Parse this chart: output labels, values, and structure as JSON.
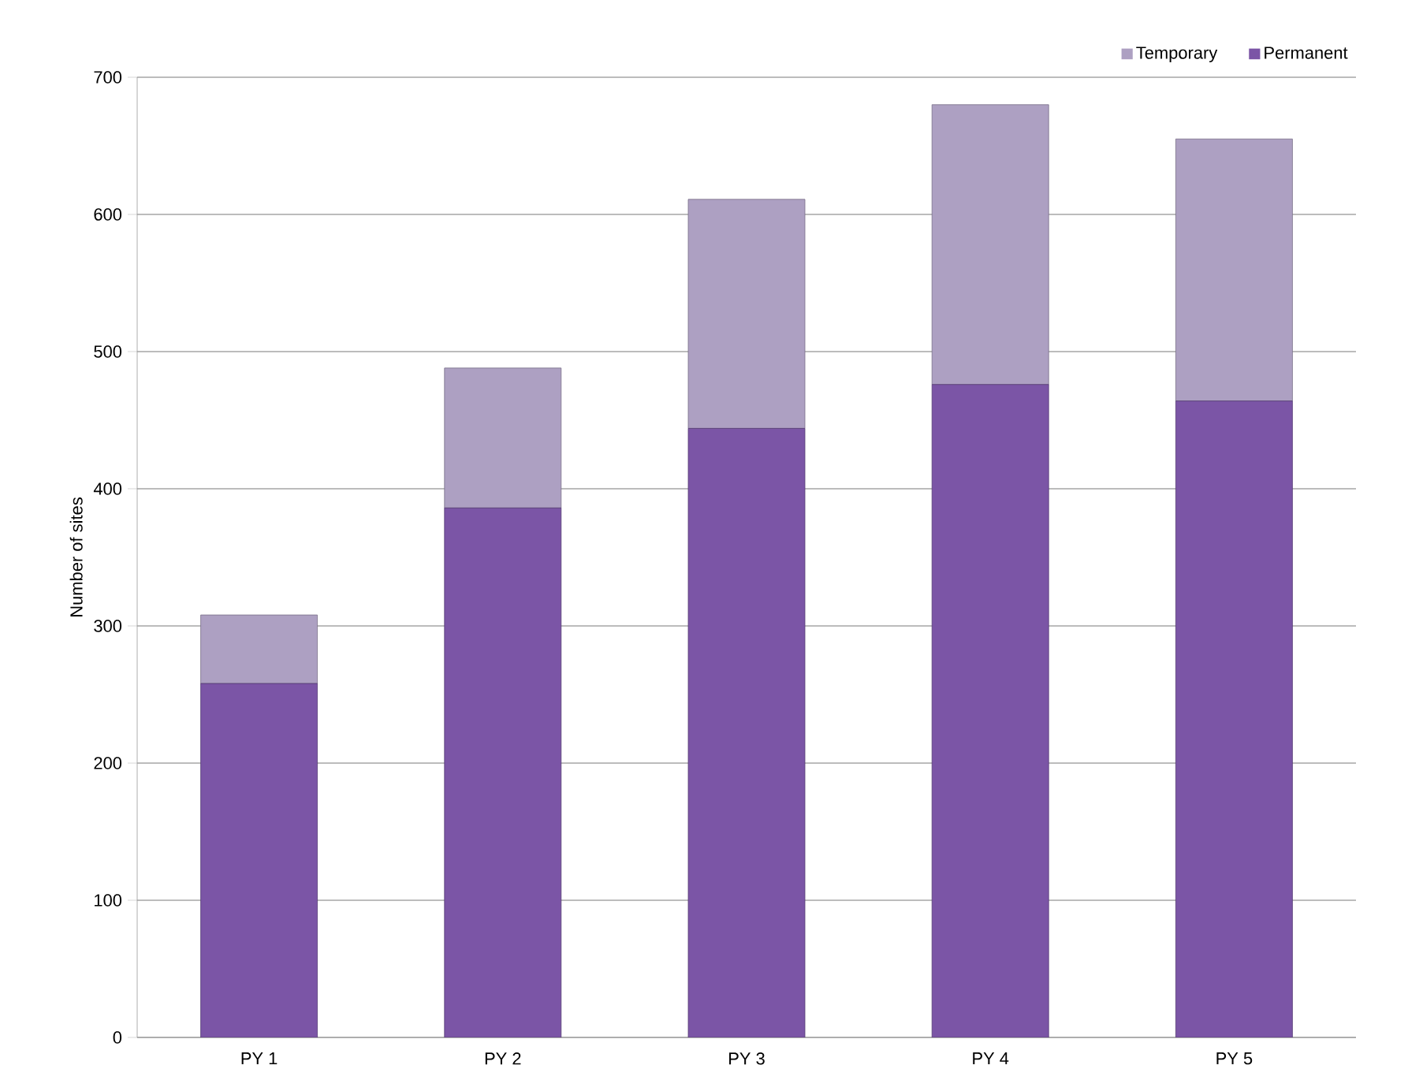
{
  "chart_data": {
    "type": "bar",
    "stacked": true,
    "ylabel": "Number of sites",
    "categories": [
      "PY 1",
      "PY 2",
      "PY 3",
      "PY 4",
      "PY 5"
    ],
    "series": [
      {
        "name": "Permanent",
        "color": "#7b55a6",
        "values": [
          258,
          386,
          444,
          476,
          464
        ]
      },
      {
        "name": "Temporary",
        "color": "#ada0c2",
        "values": [
          50,
          102,
          167,
          204,
          191
        ]
      }
    ],
    "ylim": [
      0,
      700
    ],
    "yticks": [
      0,
      100,
      200,
      300,
      400,
      500,
      600,
      700
    ],
    "grid": "y",
    "legend": "top right"
  }
}
